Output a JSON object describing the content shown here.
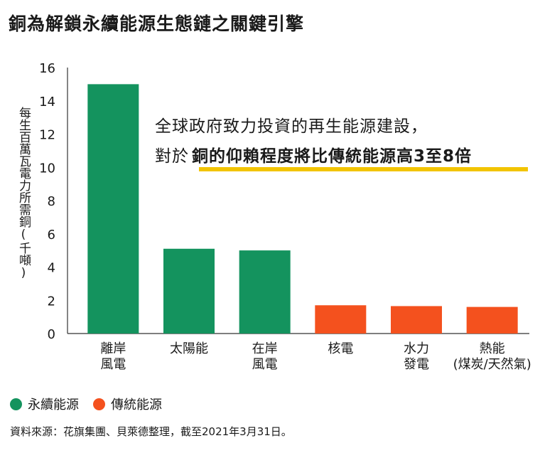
{
  "title": "銅為解鎖永續能源生態鏈之關鍵引擎",
  "annotation": {
    "line1": "全球政府致力投資的再生能源建設，",
    "line2_prefix": "對於",
    "line2_bold": "銅的仰賴程度將比傳統能源高3至8倍",
    "highlight_color": "#f2c400"
  },
  "legend": [
    {
      "label": "永續能源",
      "color": "#14935e"
    },
    {
      "label": "傳統能源",
      "color": "#f4511e"
    }
  ],
  "source": "資料來源：花旗集團、貝萊德整理，截至2021年3月31日。",
  "chart_data": {
    "type": "bar",
    "title": "",
    "ylabel": "每生百萬瓦電力所需銅(千噸)",
    "xlabel": "",
    "ylim": [
      0,
      16
    ],
    "yticks": [
      0,
      2,
      4,
      6,
      8,
      10,
      12,
      14,
      16
    ],
    "grid": false,
    "categories": [
      [
        "離岸",
        "風電"
      ],
      [
        "太陽能"
      ],
      [
        "在岸",
        "風電"
      ],
      [
        "核電"
      ],
      [
        "水力",
        "發電"
      ],
      [
        "熱能",
        "(煤炭/天然氣)"
      ]
    ],
    "values": [
      15.0,
      5.1,
      5.0,
      1.7,
      1.65,
      1.6
    ],
    "bar_group": [
      "永續能源",
      "永續能源",
      "永續能源",
      "傳統能源",
      "傳統能源",
      "傳統能源"
    ]
  }
}
